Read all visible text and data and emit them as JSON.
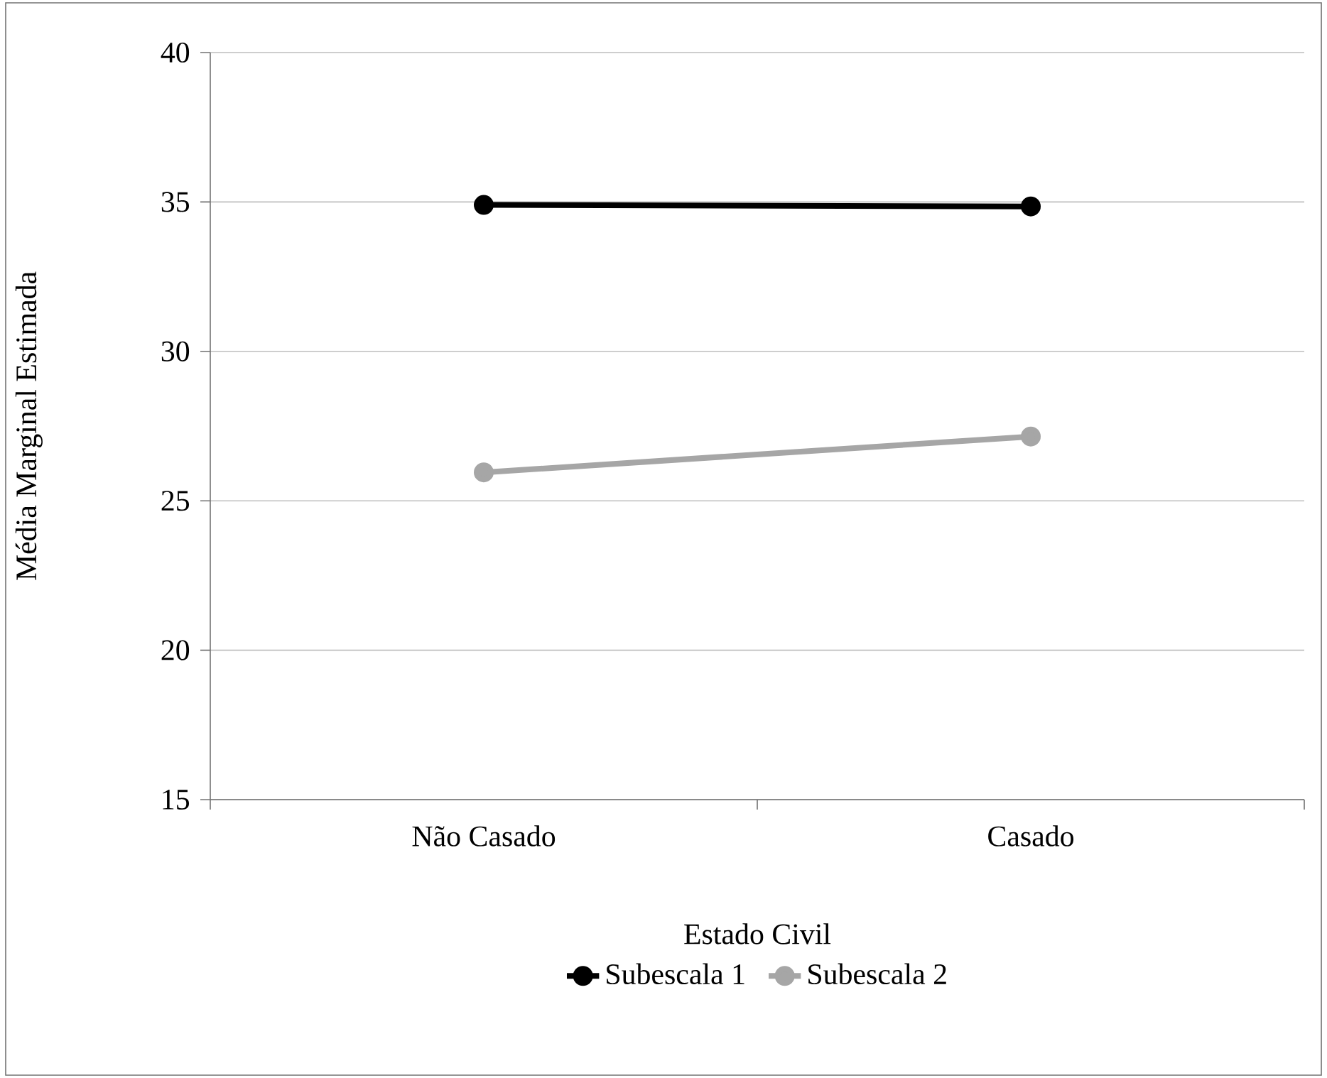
{
  "chart_data": {
    "type": "line",
    "categories": [
      "Não Casado",
      "Casado"
    ],
    "series": [
      {
        "name": "Subescala 1",
        "color": "#000000",
        "values": [
          34.9,
          34.85
        ]
      },
      {
        "name": "Subescala 2",
        "color": "#a6a6a6",
        "values": [
          25.95,
          27.15
        ]
      }
    ],
    "xlabel": "Estado Civil",
    "ylabel": "Média Marginal Estimada",
    "ylim": [
      15,
      40
    ],
    "yticks": [
      15,
      20,
      25,
      30,
      35,
      40
    ],
    "grid": "y",
    "legend": "bottom",
    "marker": "circle",
    "line_style": "solid"
  }
}
